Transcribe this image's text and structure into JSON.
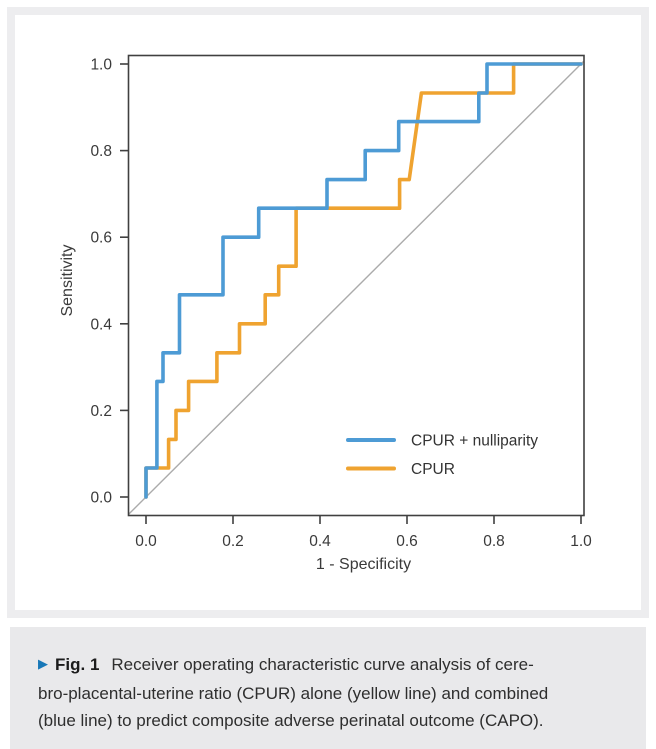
{
  "figure": {
    "caption": {
      "marker": "▶",
      "figure_label": "Fig. 1",
      "line1": "Receiver operating characteristic curve analysis of cere-",
      "line2": "bro-placental-uterine ratio (CPUR) alone (yellow line) and combined",
      "line3": "(blue line) to predict composite adverse perinatal outcome (CAPO).",
      "marker_color": "#1878b8"
    }
  },
  "chart_data": {
    "type": "line",
    "subtype": "roc-step-curves",
    "title": "",
    "xlabel": "1 - Specificity",
    "ylabel": "Sensitivity",
    "xlim": [
      0,
      1
    ],
    "ylim": [
      0,
      1
    ],
    "xticks": [
      "0.0",
      "0.2",
      "0.4",
      "0.6",
      "0.8",
      "1.0"
    ],
    "yticks": [
      "0.0",
      "0.2",
      "0.4",
      "0.6",
      "0.8",
      "1.0"
    ],
    "grid": false,
    "legend_position": "inside lower right",
    "axis_color": "#404040",
    "tick_label_color": "#3a3a3a",
    "series": [
      {
        "name": "CPUR + nulliparity",
        "color": "#4d9bd5",
        "points": [
          [
            0,
            0
          ],
          [
            0,
            0.067
          ],
          [
            0.025,
            0.067
          ],
          [
            0.025,
            0.267
          ],
          [
            0.039,
            0.267
          ],
          [
            0.039,
            0.333
          ],
          [
            0.077,
            0.333
          ],
          [
            0.077,
            0.467
          ],
          [
            0.177,
            0.467
          ],
          [
            0.177,
            0.6
          ],
          [
            0.259,
            0.6
          ],
          [
            0.259,
            0.667
          ],
          [
            0.416,
            0.667
          ],
          [
            0.416,
            0.733
          ],
          [
            0.504,
            0.733
          ],
          [
            0.504,
            0.8
          ],
          [
            0.581,
            0.8
          ],
          [
            0.581,
            0.867
          ],
          [
            0.765,
            0.867
          ],
          [
            0.765,
            0.933
          ],
          [
            0.784,
            0.933
          ],
          [
            0.784,
            1
          ],
          [
            1,
            1
          ]
        ]
      },
      {
        "name": "CPUR",
        "color": "#efa330",
        "points": [
          [
            0,
            0
          ],
          [
            0,
            0.067
          ],
          [
            0.052,
            0.067
          ],
          [
            0.052,
            0.133
          ],
          [
            0.069,
            0.133
          ],
          [
            0.069,
            0.2
          ],
          [
            0.098,
            0.2
          ],
          [
            0.098,
            0.267
          ],
          [
            0.163,
            0.267
          ],
          [
            0.163,
            0.333
          ],
          [
            0.215,
            0.333
          ],
          [
            0.215,
            0.4
          ],
          [
            0.274,
            0.4
          ],
          [
            0.274,
            0.467
          ],
          [
            0.305,
            0.467
          ],
          [
            0.305,
            0.533
          ],
          [
            0.345,
            0.533
          ],
          [
            0.345,
            0.667
          ],
          [
            0.583,
            0.667
          ],
          [
            0.583,
            0.733
          ],
          [
            0.605,
            0.733
          ],
          [
            0.633,
            0.933
          ],
          [
            0.845,
            0.933
          ],
          [
            0.845,
            1
          ],
          [
            1,
            1
          ]
        ]
      }
    ],
    "reference_line": {
      "from": [
        0,
        0
      ],
      "to": [
        1,
        1
      ],
      "color": "#ababab"
    }
  }
}
